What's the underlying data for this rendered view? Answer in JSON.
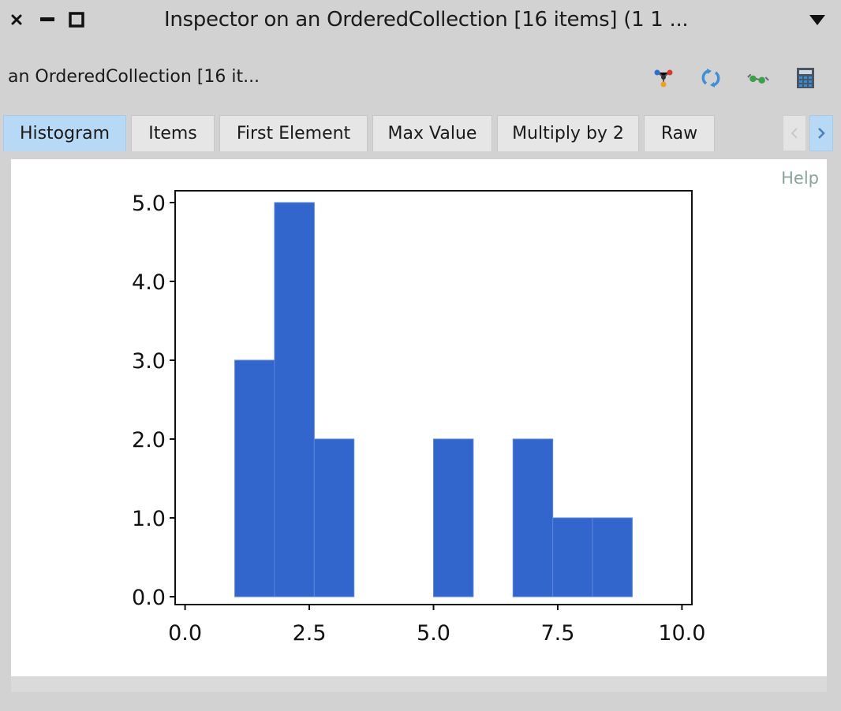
{
  "window": {
    "title": "Inspector on an OrderedCollection [16 items] (1 1 ...",
    "close_icon": "close-icon",
    "minimize_icon": "minimize-icon",
    "maximize_icon": "maximize-icon",
    "menu_icon": "dropdown-triangle-icon"
  },
  "toolbar": {
    "subject": "an OrderedCollection [16 it...",
    "icons": [
      "graph-explore-icon",
      "refresh-icon",
      "glasses-inspect-icon",
      "calculator-icon"
    ]
  },
  "tabs": {
    "items": [
      {
        "label": "Histogram",
        "active": true
      },
      {
        "label": "Items",
        "active": false
      },
      {
        "label": "First Element",
        "active": false
      },
      {
        "label": "Max Value",
        "active": false
      },
      {
        "label": "Multiply by 2",
        "active": false
      },
      {
        "label": "Raw",
        "active": false
      }
    ],
    "scroll_left_icon": "chevron-left-icon",
    "scroll_right_icon": "chevron-right-icon"
  },
  "content": {
    "help_label": "Help"
  },
  "colors": {
    "bar_fill": "#3366cc",
    "bar_edge": "#5a86dc",
    "active_tab": "#b8d9f6"
  },
  "chart_data": {
    "type": "bar",
    "subtype": "histogram",
    "bins": [
      {
        "x0": 1.0,
        "x1": 1.8,
        "count": 3
      },
      {
        "x0": 1.8,
        "x1": 2.6,
        "count": 5
      },
      {
        "x0": 2.6,
        "x1": 3.4,
        "count": 2
      },
      {
        "x0": 3.4,
        "x1": 4.2,
        "count": 0
      },
      {
        "x0": 4.2,
        "x1": 5.0,
        "count": 0
      },
      {
        "x0": 5.0,
        "x1": 5.8,
        "count": 2
      },
      {
        "x0": 5.8,
        "x1": 6.6,
        "count": 0
      },
      {
        "x0": 6.6,
        "x1": 7.4,
        "count": 2
      },
      {
        "x0": 7.4,
        "x1": 8.2,
        "count": 1
      },
      {
        "x0": 8.2,
        "x1": 9.0,
        "count": 1
      }
    ],
    "xlim": [
      -0.2,
      10.2
    ],
    "ylim": [
      -0.1,
      5.15
    ],
    "xticks": [
      0.0,
      2.5,
      5.0,
      7.5,
      10.0
    ],
    "xtick_labels": [
      "0.0",
      "2.5",
      "5.0",
      "7.5",
      "10.0"
    ],
    "yticks": [
      0.0,
      1.0,
      2.0,
      3.0,
      4.0,
      5.0
    ],
    "ytick_labels": [
      "0.0",
      "1.0",
      "2.0",
      "3.0",
      "4.0",
      "5.0"
    ],
    "title": "",
    "xlabel": "",
    "ylabel": "",
    "grid": false,
    "legend": "none"
  }
}
